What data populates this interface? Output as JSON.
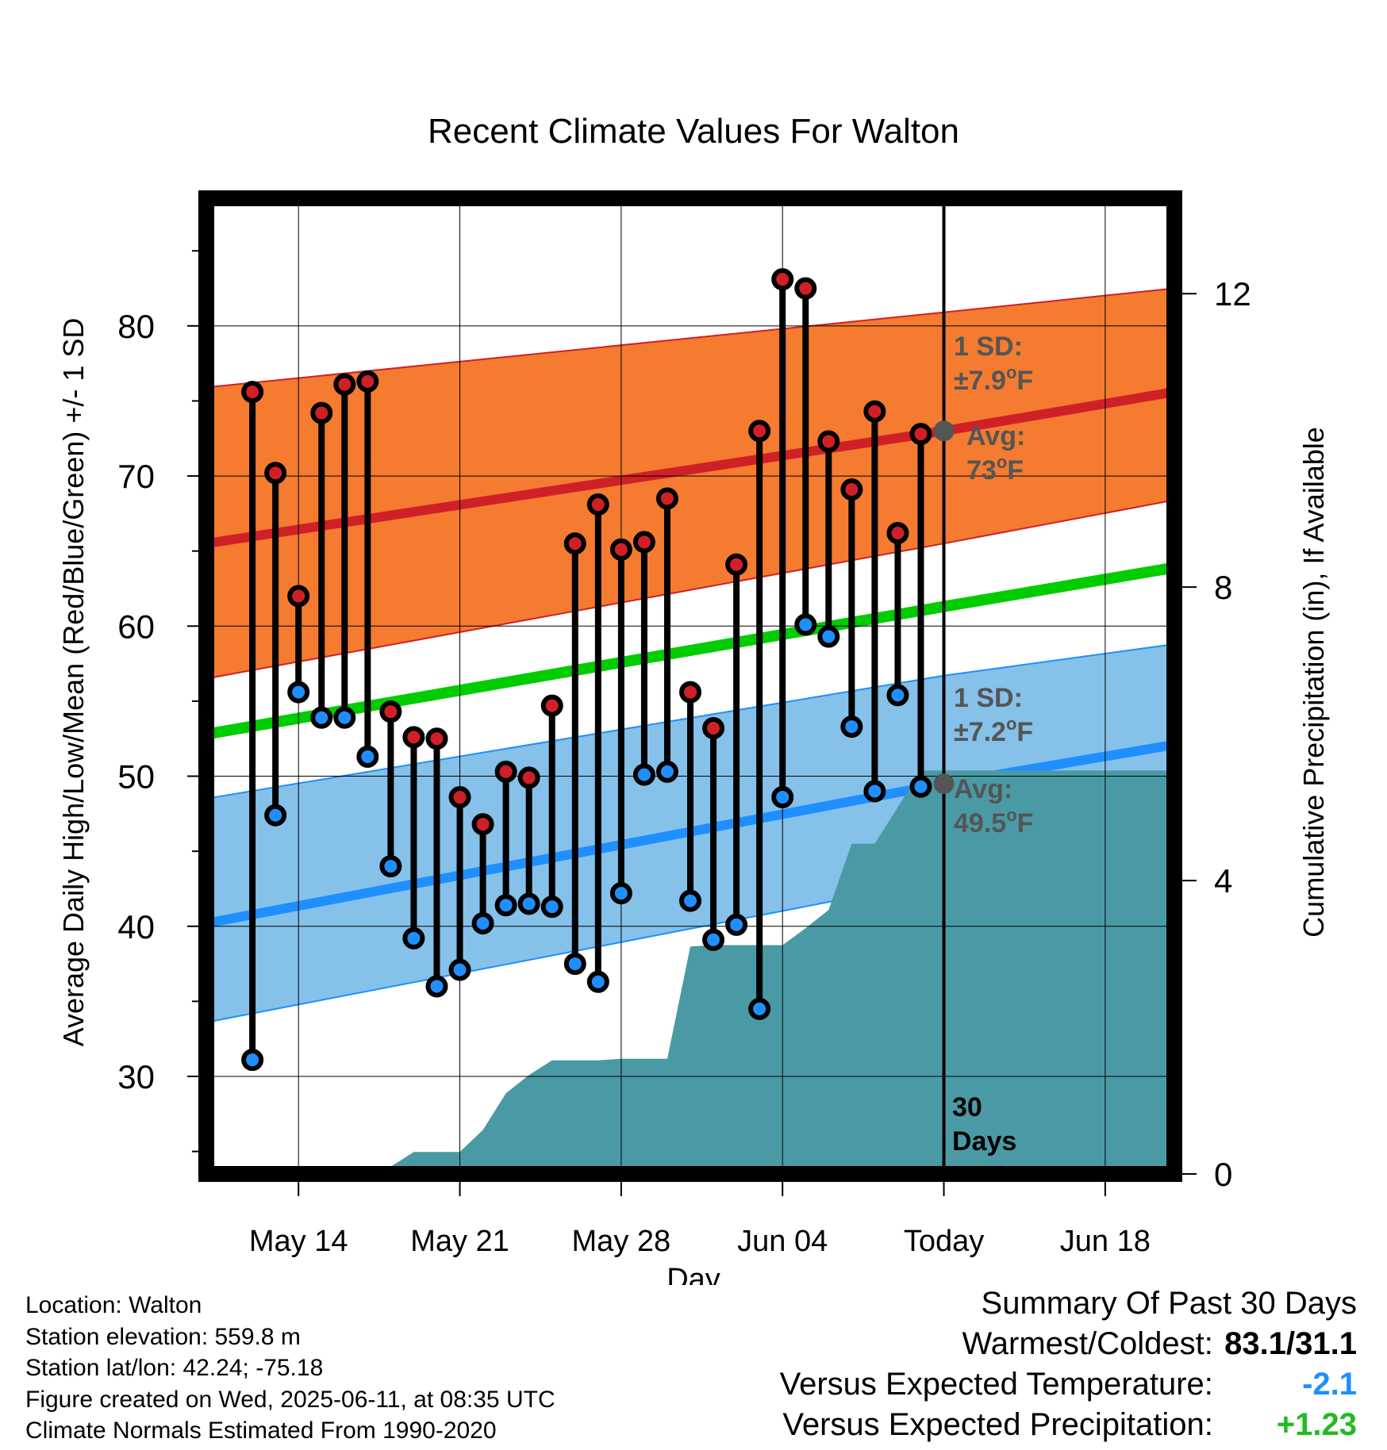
{
  "chart_data": {
    "type": "line",
    "title": "Recent Climate Values For Walton",
    "xlabel": "Day",
    "ylabel": "Average Daily High/Low/Mean (Red/Blue/Green) +/- 1 SD",
    "y2label": "Cumulative Precipitation (in), If Available",
    "xlim": [
      "2025-05-10",
      "2025-06-21"
    ],
    "ylim": [
      23.5,
      88.5
    ],
    "y2lim": [
      0,
      13.3
    ],
    "x_ticks": [
      {
        "date": "2025-05-14",
        "label": "May 14"
      },
      {
        "date": "2025-05-21",
        "label": "May 21"
      },
      {
        "date": "2025-05-28",
        "label": "May 28"
      },
      {
        "date": "2025-06-04",
        "label": "Jun 04"
      },
      {
        "date": "2025-06-11",
        "label": "Today"
      },
      {
        "date": "2025-06-18",
        "label": "Jun 18"
      }
    ],
    "y_ticks": [
      "30",
      "40",
      "50",
      "60",
      "70",
      "80"
    ],
    "y2_ticks": [
      "0",
      "4",
      "8",
      "12"
    ],
    "grid": true,
    "dates": [
      "2025-05-12",
      "2025-05-13",
      "2025-05-14",
      "2025-05-15",
      "2025-05-16",
      "2025-05-17",
      "2025-05-18",
      "2025-05-19",
      "2025-05-20",
      "2025-05-21",
      "2025-05-22",
      "2025-05-23",
      "2025-05-24",
      "2025-05-25",
      "2025-05-26",
      "2025-05-27",
      "2025-05-28",
      "2025-05-29",
      "2025-05-30",
      "2025-05-31",
      "2025-06-01",
      "2025-06-02",
      "2025-06-03",
      "2025-06-04",
      "2025-06-05",
      "2025-06-06",
      "2025-06-07",
      "2025-06-08",
      "2025-06-09",
      "2025-06-10"
    ],
    "series": [
      {
        "name": "High",
        "color": "#d02027",
        "values": [
          75.6,
          70.2,
          62.0,
          74.2,
          76.1,
          76.3,
          54.3,
          52.6,
          52.5,
          48.6,
          46.8,
          50.3,
          49.9,
          54.7,
          65.5,
          68.1,
          65.1,
          65.6,
          68.5,
          55.6,
          53.2,
          64.1,
          73.0,
          83.1,
          82.5,
          72.3,
          69.1,
          74.3,
          66.2,
          72.8
        ]
      },
      {
        "name": "Low",
        "color": "#1f8fff",
        "values": [
          31.1,
          47.4,
          55.6,
          53.9,
          53.9,
          51.3,
          44.0,
          39.2,
          36.0,
          37.1,
          40.2,
          41.4,
          41.5,
          41.3,
          37.5,
          36.3,
          42.2,
          50.1,
          50.3,
          41.7,
          39.1,
          40.1,
          34.5,
          48.6,
          60.1,
          59.3,
          53.3,
          49.0,
          55.4,
          49.3
        ]
      }
    ],
    "normals": {
      "dates": [
        "2025-05-10",
        "2025-06-11",
        "2025-06-21"
      ],
      "high_mean": [
        65.5,
        73.0,
        75.6
      ],
      "high_sd_band_lower": [
        56.5,
        65.5,
        68.4
      ],
      "high_sd_band_upper": [
        75.9,
        80.9,
        82.5
      ],
      "low_mean": [
        40.2,
        49.5,
        52.1
      ],
      "low_sd_band_lower": [
        33.6,
        43.1,
        46.2
      ],
      "low_sd_band_upper": [
        48.5,
        56.7,
        58.8
      ],
      "daily_mean": [
        52.8,
        61.3,
        63.9
      ],
      "band_high_color": "#f47b30",
      "band_low_color": "#85c1e9",
      "mean_color": "#00cc00"
    },
    "precipitation": {
      "color": "#4a9aa6",
      "dates": [
        "2025-05-10",
        "2025-05-13",
        "2025-05-15",
        "2025-05-16",
        "2025-05-18",
        "2025-05-19",
        "2025-05-20",
        "2025-05-21",
        "2025-05-22",
        "2025-05-23",
        "2025-05-24",
        "2025-05-25",
        "2025-05-26",
        "2025-05-27",
        "2025-05-28",
        "2025-05-29",
        "2025-05-30",
        "2025-05-31",
        "2025-06-01",
        "2025-06-02",
        "2025-06-03",
        "2025-06-04",
        "2025-06-05",
        "2025-06-06",
        "2025-06-07",
        "2025-06-08",
        "2025-06-09",
        "2025-06-10",
        "2025-06-11",
        "2025-06-21"
      ],
      "values": [
        0,
        0,
        0,
        0,
        0.1,
        0.3,
        0.3,
        0.3,
        0.6,
        1.1,
        1.35,
        1.55,
        1.55,
        1.55,
        1.57,
        1.57,
        1.57,
        3.1,
        3.12,
        3.12,
        3.12,
        3.12,
        3.35,
        3.6,
        4.5,
        4.5,
        5.0,
        5.5,
        5.5,
        5.5
      ]
    },
    "annotations": {
      "high_sd": {
        "line1": "1 SD:",
        "pm": "±7.9",
        "deg": "o",
        "unit": "F"
      },
      "high_avg": {
        "line1": "Avg:",
        "value": "73",
        "deg": "o",
        "unit": "F"
      },
      "low_sd": {
        "line1": "1 SD:",
        "pm": "±7.2",
        "deg": "o",
        "unit": "F"
      },
      "low_avg": {
        "line1": "Avg:",
        "value": "49.5",
        "deg": "o",
        "unit": "F"
      },
      "window_label": [
        "30",
        "Days"
      ],
      "today_high": 73.0,
      "today_low": 49.5
    }
  },
  "station_info": {
    "location": "Location: Walton",
    "elevation": "Station elevation: 559.8 m",
    "latlon": "Station lat/lon: 42.24; -75.18",
    "created": "Figure created on Wed, 2025-06-11, at 08:35 UTC",
    "normals": "Climate Normals Estimated From 1990-2020"
  },
  "summary": {
    "title": "Summary Of Past 30 Days",
    "warmest_label": "Warmest/Coldest:",
    "warmest_value": "83.1/31.1",
    "temp_label": "Versus Expected Temperature:",
    "temp_value": "-2.1",
    "temp_color": "#1f8fff",
    "precip_label": "Versus Expected Precipitation:",
    "precip_value": "+1.23",
    "precip_color": "#22bb22"
  }
}
